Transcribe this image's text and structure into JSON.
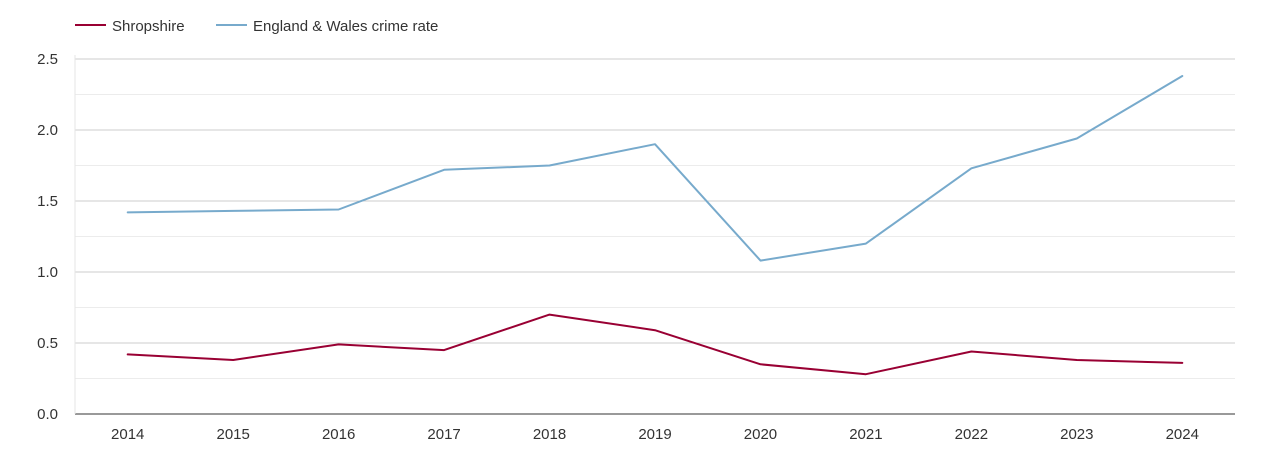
{
  "chart_data": {
    "type": "line",
    "title": "",
    "xlabel": "",
    "ylabel": "",
    "categories": [
      "2014",
      "2015",
      "2016",
      "2017",
      "2018",
      "2019",
      "2020",
      "2021",
      "2022",
      "2023",
      "2024"
    ],
    "yticks": [
      "0.0",
      "0.5",
      "1.0",
      "1.5",
      "2.0",
      "2.5"
    ],
    "ylim": [
      0,
      2.5
    ],
    "grid": true,
    "legend_position": "top-left",
    "series": [
      {
        "name": "Shropshire",
        "color": "#990033",
        "values": [
          0.42,
          0.38,
          0.49,
          0.45,
          0.7,
          0.59,
          0.35,
          0.28,
          0.44,
          0.38,
          0.36
        ]
      },
      {
        "name": "England & Wales crime rate",
        "color": "#77aacc",
        "values": [
          1.42,
          1.43,
          1.44,
          1.72,
          1.75,
          1.9,
          1.08,
          1.2,
          1.73,
          1.94,
          2.38
        ]
      }
    ]
  }
}
